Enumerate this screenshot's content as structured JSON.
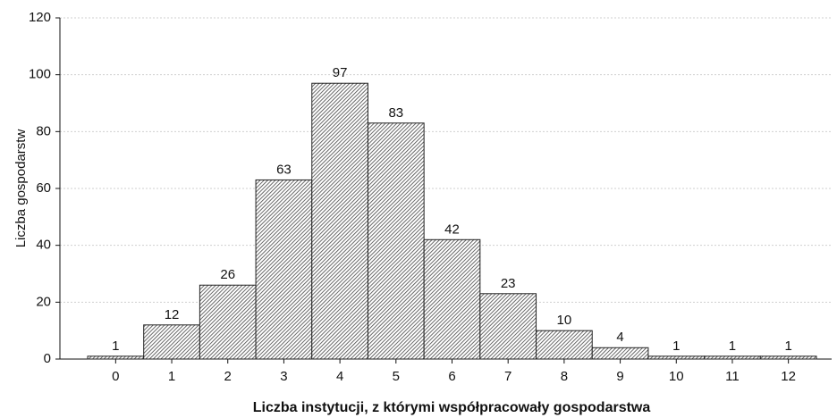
{
  "chart_data": {
    "type": "bar",
    "xlabel": "Liczba instytucji, z którymi współpracowały gospodarstwa",
    "ylabel": "Liczba gospodarstw",
    "categories": [
      "0",
      "1",
      "2",
      "3",
      "4",
      "5",
      "6",
      "7",
      "8",
      "9",
      "10",
      "11",
      "12"
    ],
    "values": [
      1,
      12,
      26,
      63,
      97,
      83,
      42,
      23,
      10,
      4,
      1,
      1,
      1
    ],
    "color": "#555555",
    "ylim": [
      0,
      120
    ],
    "yticks": [
      0,
      20,
      40,
      60,
      80,
      100,
      120
    ],
    "grid": true
  }
}
